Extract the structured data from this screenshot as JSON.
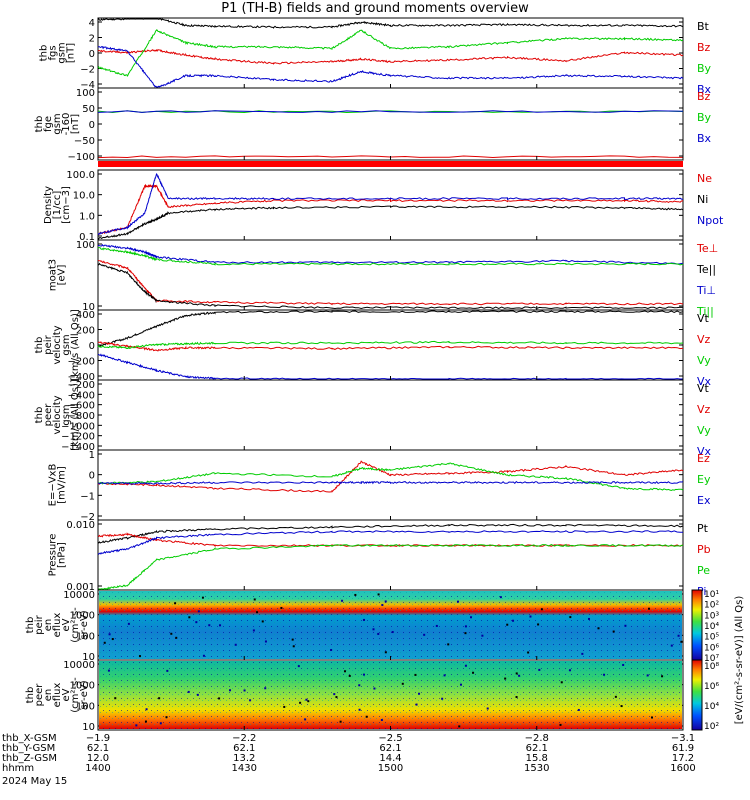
{
  "title": "P1 (TH-B) fields and ground moments overview",
  "chart_data": [
    {
      "type": "line",
      "panel": "fgs",
      "ylabel": [
        "thb",
        "fgs",
        "gsm",
        "[nT]"
      ],
      "yticks": [
        "4",
        "2",
        "0",
        "−2",
        "−4"
      ],
      "ylim": [
        -4,
        4.5
      ],
      "series": [
        {
          "name": "Bt",
          "color": "#000000",
          "x": [
            0.0,
            0.05,
            0.1,
            0.15,
            0.2,
            0.3,
            0.4,
            0.45,
            0.5,
            0.6,
            0.7,
            0.8,
            0.9,
            1.0
          ],
          "y": [
            4.3,
            4.4,
            4.5,
            3.6,
            3.5,
            3.4,
            3.4,
            4.0,
            3.6,
            3.6,
            3.7,
            3.6,
            3.6,
            3.5
          ]
        },
        {
          "name": "Bz",
          "color": "#e00000",
          "x": [
            0.0,
            0.05,
            0.1,
            0.15,
            0.2,
            0.3,
            0.4,
            0.45,
            0.5,
            0.6,
            0.7,
            0.8,
            0.9,
            1.0
          ],
          "y": [
            0.5,
            0.3,
            0.6,
            0.0,
            -0.5,
            -1.0,
            -0.8,
            -0.5,
            -0.8,
            -0.6,
            -0.3,
            -0.7,
            0.3,
            0.0
          ]
        },
        {
          "name": "By",
          "color": "#00cc00",
          "x": [
            0.0,
            0.05,
            0.1,
            0.15,
            0.2,
            0.3,
            0.4,
            0.45,
            0.5,
            0.6,
            0.7,
            0.8,
            0.9,
            1.0
          ],
          "y": [
            -1.5,
            -2.5,
            3.0,
            1.5,
            1.0,
            1.0,
            0.8,
            3.0,
            0.8,
            1.0,
            1.5,
            2.0,
            2.0,
            1.8
          ]
        },
        {
          "name": "Bx",
          "color": "#0000cc",
          "x": [
            0.0,
            0.05,
            0.1,
            0.15,
            0.2,
            0.3,
            0.4,
            0.45,
            0.5,
            0.6,
            0.7,
            0.8,
            0.9,
            1.0
          ],
          "y": [
            1.0,
            0.5,
            -4.0,
            -2.5,
            -2.5,
            -3.0,
            -3.2,
            -2.0,
            -2.5,
            -2.8,
            -2.8,
            -2.5,
            -2.6,
            -2.8
          ]
        }
      ]
    },
    {
      "type": "line",
      "panel": "fge",
      "ylabel": [
        "thb",
        "fge",
        "gsm",
        "-160",
        "[nT]"
      ],
      "yticks": [
        "100",
        "50",
        "0",
        "−50",
        "−100"
      ],
      "ylim": [
        -160,
        105
      ],
      "series": [
        {
          "name": "Bz",
          "color": "#e00000",
          "x": [
            0.0,
            1.0
          ],
          "y": [
            -148,
            -148
          ]
        },
        {
          "name": "By",
          "color": "#00cc00",
          "x": [
            0.0,
            1.0
          ],
          "y": [
            18,
            18
          ]
        },
        {
          "name": "Bx",
          "color": "#0000cc",
          "x": [
            0.0,
            1.0
          ],
          "y": [
            18,
            18
          ]
        }
      ]
    },
    {
      "type": "line",
      "panel": "density",
      "ylabel": [
        "Density",
        "[1/cc]",
        "[cm−3]"
      ],
      "yticks": [
        "100.0",
        "10.0",
        "1.0",
        "0.1"
      ],
      "ylim": [
        0.05,
        120
      ],
      "log": true,
      "series": [
        {
          "name": "Ne",
          "color": "#e00000",
          "x": [
            0.0,
            0.05,
            0.08,
            0.1,
            0.12,
            0.2,
            0.3,
            0.5,
            0.7,
            0.9,
            1.0
          ],
          "y": [
            0.1,
            0.2,
            20,
            20,
            2,
            3,
            4,
            4,
            4,
            4,
            3.5
          ]
        },
        {
          "name": "Ni",
          "color": "#000000",
          "x": [
            0.0,
            0.05,
            0.08,
            0.1,
            0.12,
            0.2,
            0.3,
            0.5,
            0.7,
            0.9,
            1.0
          ],
          "y": [
            0.06,
            0.1,
            0.3,
            0.5,
            1.0,
            1.5,
            1.8,
            2.0,
            2.0,
            1.8,
            1.5
          ]
        },
        {
          "name": "Npot",
          "color": "#0000cc",
          "x": [
            0.0,
            0.05,
            0.08,
            0.1,
            0.12,
            0.2,
            0.3,
            0.5,
            0.7,
            0.9,
            1.0
          ],
          "y": [
            0.1,
            0.2,
            1.0,
            80,
            5,
            5,
            5,
            5,
            5,
            5,
            5
          ]
        }
      ]
    },
    {
      "type": "line",
      "panel": "moat",
      "ylabel": [
        "moat3",
        "[eV]"
      ],
      "yticks": [
        "100",
        "10"
      ],
      "ylim": [
        7,
        400
      ],
      "log": true,
      "series": [
        {
          "name": "Te⊥",
          "color": "#e00000",
          "x": [
            0.0,
            0.05,
            0.08,
            0.1,
            0.2,
            0.4,
            0.6,
            0.8,
            1.0
          ],
          "y": [
            120,
            80,
            25,
            12,
            11,
            10,
            10,
            10,
            10
          ]
        },
        {
          "name": "Te||",
          "color": "#000000",
          "x": [
            0.0,
            0.05,
            0.08,
            0.1,
            0.2,
            0.4,
            0.6,
            0.8,
            1.0
          ],
          "y": [
            100,
            60,
            20,
            12,
            9,
            8,
            8,
            8,
            8
          ]
        },
        {
          "name": "Ti⊥",
          "color": "#0000cc",
          "x": [
            0.0,
            0.05,
            0.08,
            0.1,
            0.2,
            0.4,
            0.6,
            0.8,
            1.0
          ],
          "y": [
            300,
            250,
            200,
            150,
            110,
            110,
            110,
            120,
            100
          ]
        },
        {
          "name": "Ti||",
          "color": "#00cc00",
          "x": [
            0.0,
            0.05,
            0.08,
            0.1,
            0.2,
            0.4,
            0.6,
            0.8,
            1.0
          ],
          "y": [
            250,
            200,
            160,
            130,
            100,
            100,
            100,
            100,
            100
          ]
        }
      ]
    },
    {
      "type": "line",
      "panel": "peir-velocity",
      "ylabel": [
        "thb",
        "peir",
        "velocity",
        "gsm",
        "[km/s (All Qs)]"
      ],
      "yticks": [
        "400",
        "200",
        "0",
        "−200",
        "−400"
      ],
      "ylim": [
        -420,
        450
      ],
      "series": [
        {
          "name": "Vt",
          "color": "#000000",
          "x": [
            0.0,
            0.05,
            0.1,
            0.15,
            0.2,
            0.4,
            0.6,
            0.8,
            1.0
          ],
          "y": [
            0,
            100,
            250,
            380,
            420,
            430,
            430,
            430,
            430
          ]
        },
        {
          "name": "Vz",
          "color": "#e00000",
          "x": [
            0.0,
            0.05,
            0.1,
            0.15,
            0.2,
            0.4,
            0.6,
            0.8,
            1.0
          ],
          "y": [
            50,
            0,
            -50,
            -20,
            -20,
            -30,
            -10,
            -20,
            -20
          ]
        },
        {
          "name": "Vy",
          "color": "#00cc00",
          "x": [
            0.0,
            0.05,
            0.1,
            0.15,
            0.2,
            0.4,
            0.6,
            0.8,
            1.0
          ],
          "y": [
            0,
            -20,
            20,
            30,
            40,
            40,
            50,
            40,
            40
          ]
        },
        {
          "name": "Vx",
          "color": "#0000cc",
          "x": [
            0.0,
            0.05,
            0.1,
            0.15,
            0.2,
            0.4,
            0.6,
            0.8,
            1.0
          ],
          "y": [
            -100,
            -200,
            -300,
            -380,
            -400,
            -410,
            -410,
            -410,
            -410
          ]
        }
      ]
    },
    {
      "type": "line",
      "panel": "peer-velocity",
      "ylabel": [
        "thb",
        "peer",
        "velocity",
        "gsm",
        "[km/s (All Qs)]"
      ],
      "yticks": [
        "−200",
        "−400",
        "−600",
        "−800",
        "−1000",
        "−1200",
        "−1400"
      ],
      "ylim": [
        -1500,
        -100
      ],
      "series": [
        {
          "name": "Vt",
          "color": "#000000",
          "x": [],
          "y": []
        },
        {
          "name": "Vz",
          "color": "#e00000",
          "x": [],
          "y": []
        },
        {
          "name": "Vy",
          "color": "#00cc00",
          "x": [],
          "y": []
        },
        {
          "name": "Vx",
          "color": "#0000cc",
          "x": [],
          "y": []
        }
      ]
    },
    {
      "type": "line",
      "panel": "efield",
      "ylabel": [
        "E=−VxB",
        "[mV/m]"
      ],
      "yticks": [
        "1",
        "0",
        "−1",
        "−2"
      ],
      "ylim": [
        -2.2,
        2.0
      ],
      "series": [
        {
          "name": "Ez",
          "color": "#e00000",
          "x": [
            0.0,
            0.1,
            0.2,
            0.4,
            0.45,
            0.5,
            0.6,
            0.7,
            0.8,
            0.9,
            1.0
          ],
          "y": [
            0.0,
            -0.1,
            -0.3,
            -0.5,
            1.3,
            0.5,
            0.6,
            0.7,
            1.0,
            0.5,
            0.8
          ]
        },
        {
          "name": "Ey",
          "color": "#00cc00",
          "x": [
            0.0,
            0.1,
            0.2,
            0.4,
            0.45,
            0.5,
            0.6,
            0.7,
            0.8,
            0.9,
            1.0
          ],
          "y": [
            0.0,
            0.1,
            0.6,
            0.4,
            0.9,
            0.8,
            1.2,
            0.5,
            0.3,
            -0.3,
            -0.4
          ]
        },
        {
          "name": "Ex",
          "color": "#0000cc",
          "x": [
            0.0,
            0.1,
            0.2,
            0.4,
            0.45,
            0.5,
            0.6,
            0.7,
            0.8,
            0.9,
            1.0
          ],
          "y": [
            0.0,
            0.0,
            0.05,
            0.05,
            0.05,
            0.05,
            0.05,
            0.05,
            0.05,
            0.05,
            0.05
          ]
        }
      ]
    },
    {
      "type": "line",
      "panel": "pressure",
      "ylabel": [
        "Pressure",
        "[nPa]"
      ],
      "yticks": [
        "0.010",
        "0.001"
      ],
      "ylim": [
        0.0003,
        0.025
      ],
      "log": true,
      "series": [
        {
          "name": "Pt",
          "color": "#000000",
          "x": [
            0.0,
            0.05,
            0.1,
            0.2,
            0.4,
            0.6,
            0.8,
            1.0
          ],
          "y": [
            0.006,
            0.008,
            0.012,
            0.014,
            0.016,
            0.018,
            0.018,
            0.017
          ]
        },
        {
          "name": "Pb",
          "color": "#e00000",
          "x": [
            0.0,
            0.05,
            0.1,
            0.2,
            0.4,
            0.6,
            0.8,
            1.0
          ],
          "y": [
            0.009,
            0.01,
            0.007,
            0.005,
            0.005,
            0.005,
            0.005,
            0.005
          ]
        },
        {
          "name": "Pe",
          "color": "#00cc00",
          "x": [
            0.0,
            0.05,
            0.1,
            0.2,
            0.4,
            0.6,
            0.8,
            1.0
          ],
          "y": [
            0.0003,
            0.0004,
            0.002,
            0.004,
            0.005,
            0.005,
            0.005,
            0.005
          ]
        },
        {
          "name": "Pi",
          "color": "#0000cc",
          "x": [
            0.0,
            0.05,
            0.1,
            0.2,
            0.4,
            0.6,
            0.8,
            1.0
          ],
          "y": [
            0.003,
            0.004,
            0.008,
            0.01,
            0.012,
            0.012,
            0.012,
            0.012
          ]
        }
      ]
    },
    {
      "type": "heatmap",
      "panel": "peir-spectrogram",
      "ylabel": [
        "thb",
        "peir",
        "en",
        "eflux",
        "eV",
        "(cm²-s-",
        "sr-eV)"
      ],
      "yticks": [
        "10000",
        "1000",
        "100",
        "10"
      ],
      "log": true
    },
    {
      "type": "heatmap",
      "panel": "peer-spectrogram",
      "ylabel": [
        "thb",
        "peer",
        "en",
        "eflux",
        "eV",
        "(cm²-s-",
        "sr-eV)"
      ],
      "yticks": [
        "10000",
        "1000",
        "100",
        "10"
      ],
      "log": true
    }
  ],
  "colorbar": {
    "upper_ticks": [
      "10⁷",
      "10⁶",
      "10⁵",
      "10⁴",
      "10³",
      "10²",
      "10¹"
    ],
    "lower_ticks": [
      "10⁸",
      "10⁶",
      "10⁴",
      "10²"
    ],
    "label": "[eV/(cm²-s-sr-eV)] (All Qs)"
  },
  "x_axis": {
    "ticks": [
      "−1.9",
      "−2.2",
      "−2.5",
      "−2.8",
      "−3.1"
    ],
    "rows": [
      {
        "label": "thb_X-GSM",
        "values": [
          "−1.9",
          "−2.2",
          "−2.5",
          "−2.8",
          "−3.1"
        ]
      },
      {
        "label": "thb_Y-GSM",
        "values": [
          "62.1",
          "62.1",
          "62.1",
          "62.1",
          "61.9"
        ]
      },
      {
        "label": "thb_Z-GSM",
        "values": [
          "12.0",
          "13.2",
          "14.4",
          "15.8",
          "17.2"
        ]
      },
      {
        "label": "hhmm",
        "values": [
          "1400",
          "1430",
          "1500",
          "1530",
          "1600"
        ]
      }
    ],
    "date": "2024 May 15"
  }
}
